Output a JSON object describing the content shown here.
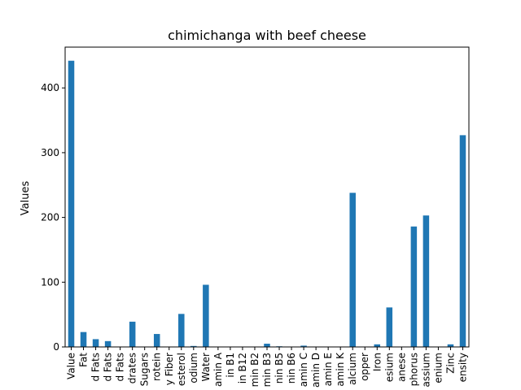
{
  "chart_data": {
    "type": "bar",
    "title": "chimichanga with beef cheese",
    "xlabel": "",
    "ylabel": "Values",
    "ylim": [
      0,
      463
    ],
    "yticks": [
      0,
      100,
      200,
      300,
      400
    ],
    "bar_color": "#1f77b4",
    "grid": false,
    "legend": "none",
    "categories": [
      "Value",
      "Fat",
      "d Fats",
      "d Fats",
      "d Fats",
      "drates",
      "Sugars",
      "rotein",
      "y Fiber",
      "esterol",
      "odium",
      "Water",
      "amin A",
      "in B1",
      "in B12",
      "min B2",
      "min B3",
      "nin B5",
      "nin B6",
      "amin C",
      "amin D",
      "amin E",
      "amin K",
      "alcium",
      "opper",
      "Iron",
      "esium",
      "anese",
      "phorus",
      "assium",
      "enium",
      "Zinc",
      "ensity"
    ],
    "values": [
      442,
      23,
      12,
      9,
      0.5,
      39,
      0.5,
      20,
      0.5,
      51,
      1.5,
      96,
      0.2,
      0.1,
      0.1,
      0.6,
      5,
      1,
      0.3,
      2,
      0.1,
      0.5,
      0.1,
      238,
      0.2,
      4,
      61,
      0.3,
      186,
      203,
      0.1,
      4,
      327
    ]
  }
}
